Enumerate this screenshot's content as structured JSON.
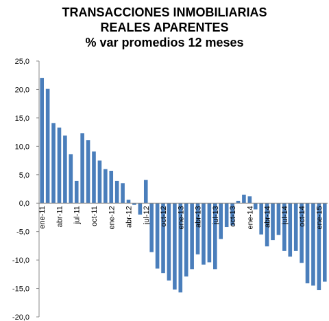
{
  "chart_data": {
    "type": "bar",
    "title": [
      "TRANSACCIONES INMOBILIARIAS",
      "REALES APARENTES",
      "% var promedios 12 meses"
    ],
    "categories": [
      "ene-11",
      null,
      null,
      "abr-11",
      null,
      null,
      "jul-11",
      null,
      null,
      "oct-11",
      null,
      null,
      "ene-12",
      null,
      null,
      "abr-12",
      null,
      null,
      "jul-12",
      null,
      null,
      "oct-12",
      null,
      null,
      "ene-13",
      null,
      null,
      "abr-13",
      null,
      null,
      "jul-13",
      null,
      null,
      "oct-13",
      null,
      null,
      "ene-14",
      null,
      null,
      "abr-14",
      null,
      null,
      "jul-14",
      null,
      null,
      "oct-14",
      null,
      null,
      "ene-15",
      null
    ],
    "values": [
      22.0,
      20.1,
      14.1,
      13.3,
      11.9,
      8.6,
      3.9,
      12.3,
      11.1,
      9.1,
      7.5,
      6.0,
      5.7,
      3.9,
      3.5,
      0.6,
      -0.3,
      -2.0,
      4.1,
      -8.6,
      -11.5,
      -12.3,
      -13.6,
      -15.2,
      -15.7,
      -12.9,
      -11.6,
      -9.0,
      -10.8,
      -10.4,
      -11.6,
      -6.3,
      -4.2,
      -3.9,
      0.4,
      1.5,
      1.2,
      -1.1,
      -5.5,
      -7.6,
      -6.5,
      -5.6,
      -8.4,
      -9.4,
      -8.4,
      -10.5,
      -14.1,
      -14.5,
      -15.3,
      -13.8
    ],
    "color": "#4a7ebb",
    "ylim": [
      -20,
      25
    ],
    "yticks": [
      {
        "value": -20,
        "label": "-20,0"
      },
      {
        "value": -15,
        "label": "-15,0"
      },
      {
        "value": -10,
        "label": "-10,0"
      },
      {
        "value": -5,
        "label": "-5,0"
      },
      {
        "value": 0,
        "label": "0,0"
      },
      {
        "value": 5,
        "label": "5,0"
      },
      {
        "value": 10,
        "label": "10,0"
      },
      {
        "value": 15,
        "label": "15,0"
      },
      {
        "value": 20,
        "label": "20,0"
      },
      {
        "value": 25,
        "label": "25,0"
      }
    ],
    "grid": false
  }
}
